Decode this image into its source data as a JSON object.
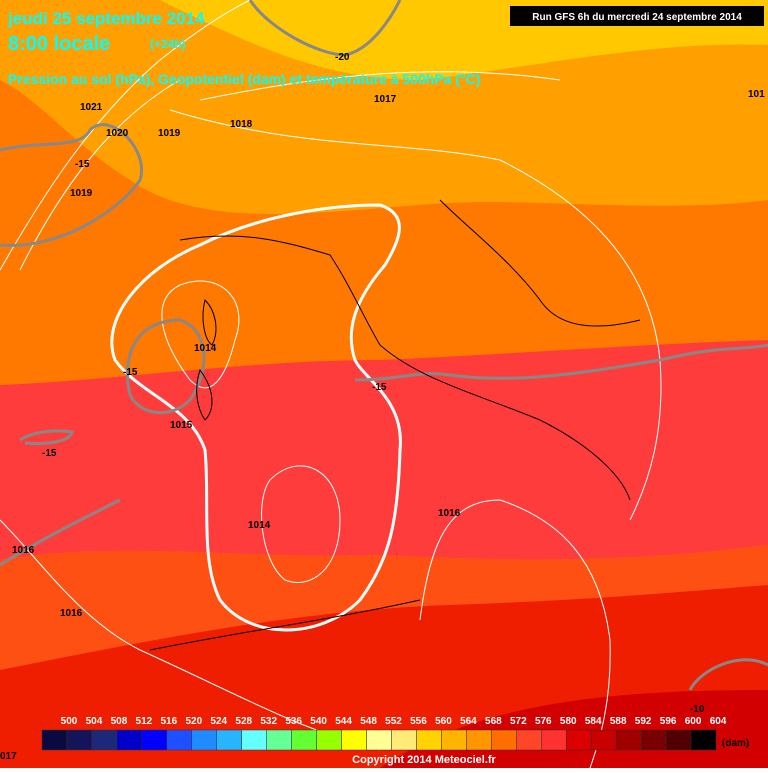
{
  "header": {
    "title": "jeudi 25 septembre 2014",
    "time": "8:00 locale",
    "offset": "(+24h)",
    "run": "Run GFS 6h du mercredi 24 septembre 2014",
    "subtitle": "Pression au sol (hPa), Geopotentiel (dam) et température à 500hPa (°C)"
  },
  "contour_labels": [
    "-20",
    "1021",
    "1020",
    "1019",
    "1018",
    "1017",
    "101",
    "-15",
    "1019",
    "1014",
    "-15",
    "1015",
    "-15",
    "-15",
    "1014",
    "1016",
    "1016",
    "1016",
    "-10",
    "017"
  ],
  "legend": {
    "labels": [
      "500",
      "504",
      "508",
      "512",
      "516",
      "520",
      "524",
      "528",
      "532",
      "536",
      "540",
      "544",
      "548",
      "552",
      "556",
      "560",
      "564",
      "568",
      "572",
      "576",
      "580",
      "584",
      "588",
      "592",
      "596",
      "600",
      "604"
    ],
    "unit": "(dam)"
  },
  "footer": {
    "copyright": "Copyright 2014 Meteociel.fr"
  }
}
